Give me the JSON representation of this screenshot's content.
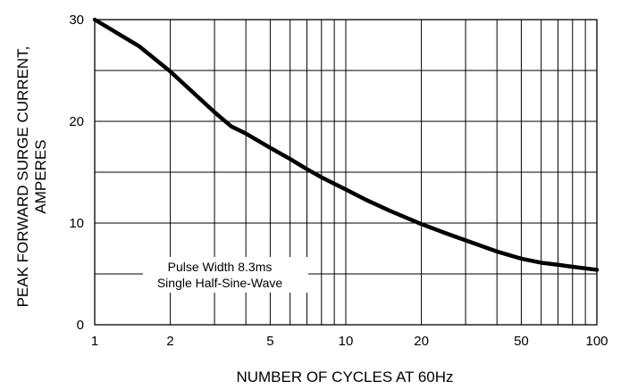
{
  "chart_data": {
    "type": "line",
    "title": "",
    "xlabel": "NUMBER OF CYCLES AT 60Hz",
    "ylabel_line1": "PEAK FORWARD SURGE CURRENT,",
    "ylabel_line2": "AMPERES",
    "x_scale": "log",
    "xlim": [
      1,
      100
    ],
    "ylim": [
      0,
      30
    ],
    "x_tick_labels": [
      "1",
      "2",
      "5",
      "10",
      "20",
      "50",
      "100"
    ],
    "y_tick_labels": [
      "0",
      "10",
      "20",
      "30"
    ],
    "grid": true,
    "legend": "none",
    "annotation_line1": "Pulse Width 8.3ms",
    "annotation_line2": "Single Half-Sine-Wave",
    "series": [
      {
        "color": "#000000",
        "x": [
          1,
          1.5,
          2,
          2.5,
          3,
          3.5,
          4,
          5,
          6,
          7,
          8,
          10,
          12,
          15,
          20,
          25,
          30,
          40,
          50,
          60,
          70,
          80,
          100
        ],
        "y": [
          30,
          27.4,
          24.9,
          22.7,
          20.9,
          19.5,
          18.8,
          17.4,
          16.3,
          15.3,
          14.5,
          13.3,
          12.3,
          11.2,
          9.9,
          9.0,
          8.3,
          7.2,
          6.5,
          6.1,
          5.9,
          5.7,
          5.4
        ]
      }
    ],
    "colors": {
      "curve": "#000000",
      "grid": "#000000",
      "background": "#ffffff"
    }
  }
}
